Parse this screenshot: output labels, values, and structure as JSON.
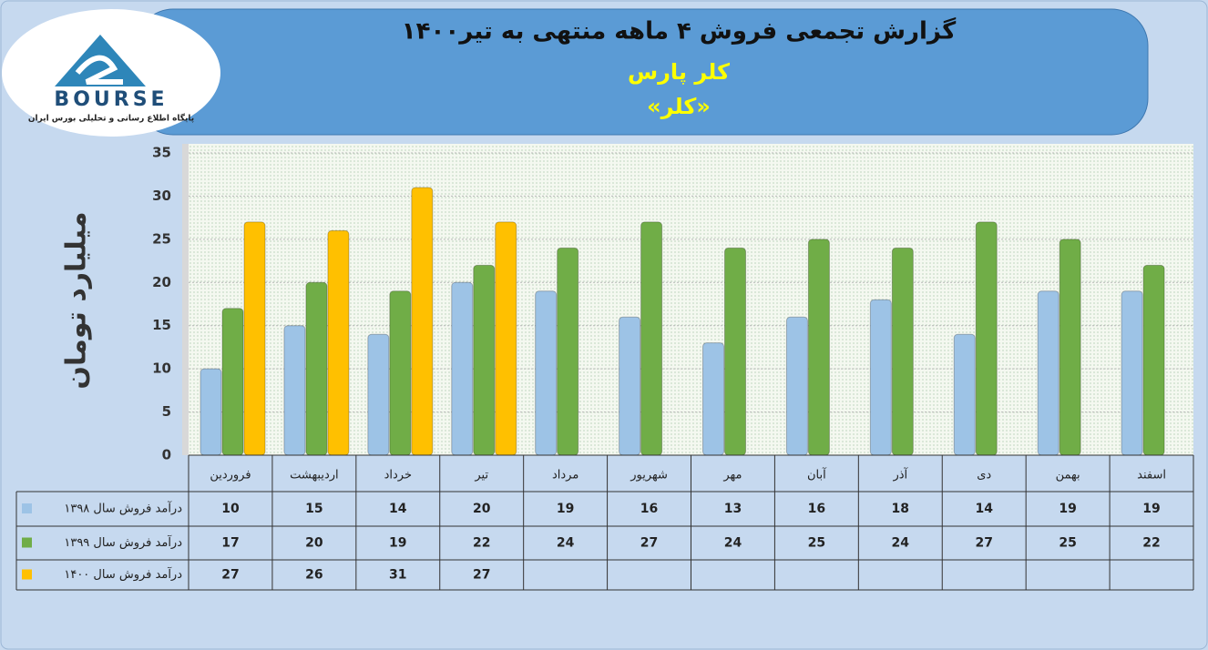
{
  "logo": {
    "name": "BOURSE",
    "tagline": "پایگاه اطلاع رسانی و تحلیلی بورس ایران"
  },
  "chart_data": {
    "type": "bar",
    "title": "گزارش تجمعی فروش ۴ ماهه منتهی به تیر۱۴۰۰",
    "subtitle": "کلر پارس",
    "symbol": "«کلر»",
    "y_label": "میلیارد تومان",
    "categories": [
      "فروردین",
      "اردیبهشت",
      "خرداد",
      "تیر",
      "مرداد",
      "شهریور",
      "مهر",
      "آبان",
      "آذر",
      "دی",
      "بهمن",
      "اسفند"
    ],
    "series": [
      {
        "name": "درآمد فروش سال ۱۳۹۸",
        "color": "#9dc3e6",
        "values": [
          10,
          15,
          14,
          20,
          19,
          16,
          13,
          16,
          18,
          14,
          19,
          19
        ]
      },
      {
        "name": "درآمد فروش سال ۱۳۹۹",
        "color": "#70ad47",
        "values": [
          17,
          20,
          19,
          22,
          24,
          27,
          24,
          25,
          24,
          27,
          25,
          22
        ]
      },
      {
        "name": "درآمد فروش سال ۱۴۰۰",
        "color": "#ffc000",
        "values": [
          27,
          26,
          31,
          27,
          null,
          null,
          null,
          null,
          null,
          null,
          null,
          null
        ]
      }
    ],
    "ylim": [
      0,
      35
    ],
    "yticks": [
      0,
      5,
      10,
      15,
      20,
      25,
      30,
      35
    ],
    "grid": true,
    "data_table": true
  }
}
